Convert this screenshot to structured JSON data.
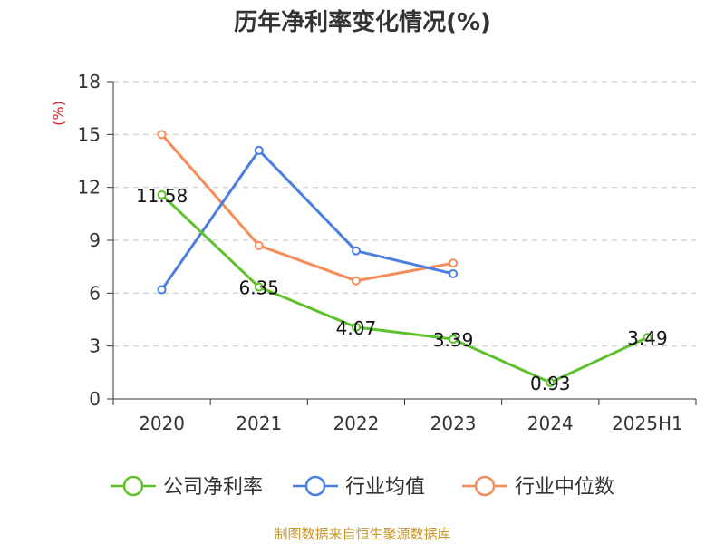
{
  "chart_data": {
    "type": "line",
    "title": "历年净利率变化情况(%)",
    "ylabel": "(%)",
    "categories": [
      "2020",
      "2021",
      "2022",
      "2023",
      "2024",
      "2025H1"
    ],
    "ylim": [
      0,
      18
    ],
    "yticks": [
      0,
      3,
      6,
      9,
      12,
      15,
      18
    ],
    "grid": "horizontal-dashed",
    "legend_position": "bottom",
    "series": [
      {
        "name": "公司净利率",
        "color": "#5dc12c",
        "values": [
          11.58,
          6.35,
          4.07,
          3.39,
          0.93,
          3.49
        ],
        "labels": [
          "11.58",
          "6.35",
          "4.07",
          "3.39",
          "0.93",
          "3.49"
        ]
      },
      {
        "name": "行业均值",
        "color": "#4a7ee0",
        "values": [
          6.2,
          14.1,
          8.4,
          7.1,
          null,
          null
        ]
      },
      {
        "name": "行业中位数",
        "color": "#f58c59",
        "values": [
          15.0,
          8.7,
          6.7,
          7.7,
          null,
          null
        ]
      }
    ]
  },
  "footer": {
    "source": "制图数据来自恒生聚源数据库"
  }
}
